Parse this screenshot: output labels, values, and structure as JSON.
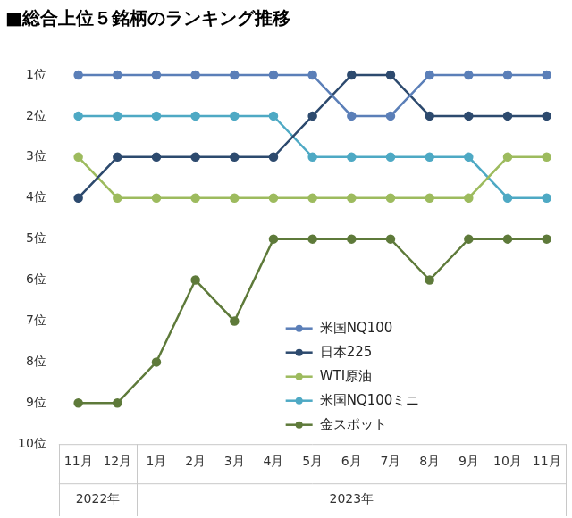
{
  "chart_data": {
    "type": "line",
    "title": "■総合上位５銘柄のランキング推移",
    "categories": [
      "11月",
      "12月",
      "1月",
      "2月",
      "3月",
      "4月",
      "5月",
      "6月",
      "7月",
      "8月",
      "9月",
      "10月",
      "11月"
    ],
    "x_groups": [
      {
        "label": "2022年",
        "from": 0,
        "to": 1
      },
      {
        "label": "2023年",
        "from": 2,
        "to": 12
      }
    ],
    "series": [
      {
        "name": "米国NQ100",
        "color": "#5b7fb8",
        "values": [
          1,
          1,
          1,
          1,
          1,
          1,
          1,
          2,
          2,
          1,
          1,
          1,
          1
        ]
      },
      {
        "name": "日本225",
        "color": "#2d4a6e",
        "values": [
          4,
          3,
          3,
          3,
          3,
          3,
          2,
          1,
          1,
          2,
          2,
          2,
          2
        ]
      },
      {
        "name": "WTI原油",
        "color": "#9dbb5e",
        "values": [
          3,
          4,
          4,
          4,
          4,
          4,
          4,
          4,
          4,
          4,
          4,
          3,
          3
        ]
      },
      {
        "name": "米国NQ100ミニ",
        "color": "#4ea9c4",
        "values": [
          2,
          2,
          2,
          2,
          2,
          2,
          3,
          3,
          3,
          3,
          3,
          4,
          4
        ]
      },
      {
        "name": "金スポット",
        "color": "#5e7a3a",
        "values": [
          9,
          9,
          8,
          6,
          7,
          5,
          5,
          5,
          5,
          6,
          5,
          5,
          5
        ]
      }
    ],
    "ylim": [
      10,
      1
    ],
    "yticks": [
      {
        "value": 1,
        "label": "1位"
      },
      {
        "value": 2,
        "label": "2位"
      },
      {
        "value": 3,
        "label": "3位"
      },
      {
        "value": 4,
        "label": "4位"
      },
      {
        "value": 5,
        "label": "5位"
      },
      {
        "value": 6,
        "label": "6位"
      },
      {
        "value": 7,
        "label": "7位"
      },
      {
        "value": 8,
        "label": "8位"
      },
      {
        "value": 9,
        "label": "9位"
      },
      {
        "value": 10,
        "label": "10位"
      }
    ],
    "grid": false,
    "legend": "bottom",
    "marker": "circle"
  }
}
